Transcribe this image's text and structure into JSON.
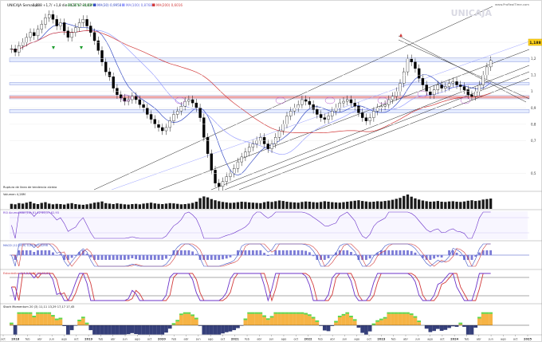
{
  "header": {
    "title": "UNICAJA Semanal",
    "quote": "1,188 +1,7/ +1,8 dic 2024 17:31/40",
    "pct": "+61,37% +0,03%",
    "ma1": "MA(30) 0,9958",
    "ma2": "MA(100) 0,8768",
    "ma3": "MA(200) 0,6016",
    "ma1_color": "#3a4fc4",
    "ma2_color": "#9aa0ff",
    "ma3_color": "#d23b3b"
  },
  "branding": {
    "watermark": "UNICAJA",
    "site": "www.ProRealTime.com"
  },
  "price_badge": "1,188",
  "colors": {
    "bull": "#000000",
    "bear": "#000000",
    "support_band": "#e5ecff",
    "resistance_band": "#f9d3d3",
    "channel": "#222222",
    "rsi": "#6b33c9",
    "macd_pos": "#3a4fc4",
    "stoch_k": "#6b33c9",
    "stoch_d": "#d23b3b",
    "volume": "#1a1a1a",
    "fill_up": "#f5a623",
    "fill_down": "#1f2a6b",
    "fill_green": "#4cd137"
  },
  "panels": {
    "main_note": "Ruptura de línea de tendencia alcista",
    "volume": "Volumen 4,28M",
    "rsi": "RSI Acumulado (14) 81,12  60,17 62,93",
    "macd": "MACD (12,26,9) 0,0335  0,0298",
    "stoch": "Estocástico (14,3,3) 80,93  83,63",
    "stm": "Stoch Momentum 20 (3) 11,11  13,29  17,17  17,45"
  },
  "chart_data": {
    "type": "candlestick",
    "ylim": [
      0.4,
      1.5
    ],
    "yticks": [
      0.5,
      0.7,
      0.8,
      0.9,
      1.0,
      1.1,
      1.2,
      1.3
    ],
    "ytick_labels": [
      "0,5",
      "0,7",
      "0,8",
      "0,9",
      "1",
      "1,1",
      "1,2",
      "1,3"
    ],
    "x_labels": [
      "oct",
      "2018",
      "feb",
      "abr",
      "jun",
      "ago",
      "oct",
      "2019",
      "feb",
      "abr",
      "jun",
      "ago",
      "oct",
      "2020",
      "feb",
      "abr",
      "jun",
      "ago",
      "oct",
      "2021",
      "feb",
      "abr",
      "jun",
      "ago",
      "oct",
      "2022",
      "feb",
      "abr",
      "jun",
      "ago",
      "oct",
      "2023",
      "feb",
      "abr",
      "jun",
      "ago",
      "oct",
      "2024",
      "feb",
      "abr",
      "jun",
      "ago",
      "oct",
      "2025"
    ],
    "closes": [
      1.26,
      1.24,
      1.28,
      1.3,
      1.33,
      1.36,
      1.34,
      1.38,
      1.41,
      1.45,
      1.47,
      1.44,
      1.4,
      1.42,
      1.37,
      1.33,
      1.36,
      1.39,
      1.42,
      1.44,
      1.4,
      1.36,
      1.31,
      1.25,
      1.18,
      1.12,
      1.09,
      1.02,
      0.98,
      0.96,
      0.94,
      0.95,
      0.97,
      0.95,
      0.92,
      0.9,
      0.86,
      0.83,
      0.8,
      0.78,
      0.76,
      0.78,
      0.82,
      0.86,
      0.88,
      0.91,
      0.94,
      0.95,
      0.93,
      0.9,
      0.84,
      0.72,
      0.62,
      0.52,
      0.44,
      0.42,
      0.45,
      0.48,
      0.5,
      0.53,
      0.57,
      0.6,
      0.63,
      0.66,
      0.68,
      0.7,
      0.72,
      0.68,
      0.65,
      0.68,
      0.72,
      0.76,
      0.8,
      0.85,
      0.88,
      0.9,
      0.92,
      0.95,
      0.94,
      0.92,
      0.89,
      0.86,
      0.84,
      0.83,
      0.85,
      0.88,
      0.9,
      0.93,
      0.94,
      0.95,
      0.93,
      0.91,
      0.87,
      0.84,
      0.82,
      0.84,
      0.88,
      0.9,
      0.91,
      0.92,
      0.95,
      0.97,
      1.0,
      1.05,
      1.12,
      1.2,
      1.18,
      1.14,
      1.08,
      1.04,
      1.0,
      0.98,
      1.01,
      1.04,
      1.02,
      1.03,
      1.05,
      1.06,
      1.04,
      1.03,
      1.01,
      0.98,
      0.97,
      1.0,
      1.04,
      1.1,
      1.15,
      1.19
    ],
    "volume": [
      2.1,
      1.9,
      2.4,
      2.2,
      2.6,
      3.0,
      2.3,
      2.0,
      2.5,
      2.8,
      2.2,
      1.9,
      2.1,
      2.0,
      1.8,
      2.2,
      2.4,
      2.0,
      1.8,
      1.7,
      1.9,
      2.2,
      2.6,
      2.8,
      3.1,
      2.4,
      2.2,
      2.0,
      2.3,
      2.1,
      1.9,
      1.8,
      2.0,
      2.1,
      1.9,
      2.2,
      2.4,
      2.6,
      2.3,
      2.1,
      2.0,
      2.2,
      2.4,
      2.3,
      2.1,
      1.9,
      2.0,
      2.2,
      2.5,
      3.0,
      4.5,
      5.2,
      4.8,
      4.1,
      3.6,
      3.2,
      2.9,
      2.7,
      2.5,
      2.6,
      2.8,
      3.0,
      2.9,
      2.7,
      2.6,
      2.5,
      2.4,
      2.8,
      3.1,
      2.9,
      3.2,
      3.5,
      3.3,
      3.0,
      2.8,
      2.7,
      2.6,
      2.9,
      3.1,
      3.0,
      2.8,
      2.7,
      2.9,
      3.2,
      3.0,
      2.8,
      2.7,
      2.6,
      2.8,
      3.0,
      3.2,
      3.4,
      3.6,
      3.3,
      3.1,
      2.9,
      3.0,
      3.2,
      3.1,
      3.3,
      3.5,
      3.8,
      4.2,
      4.6,
      5.4,
      6.0,
      5.1,
      4.4,
      3.9,
      3.5,
      3.2,
      3.0,
      3.1,
      3.3,
      3.0,
      2.9,
      3.1,
      3.2,
      3.0,
      2.9,
      3.1,
      3.4,
      3.6,
      3.3,
      3.5,
      3.9,
      4.1,
      4.3
    ]
  }
}
